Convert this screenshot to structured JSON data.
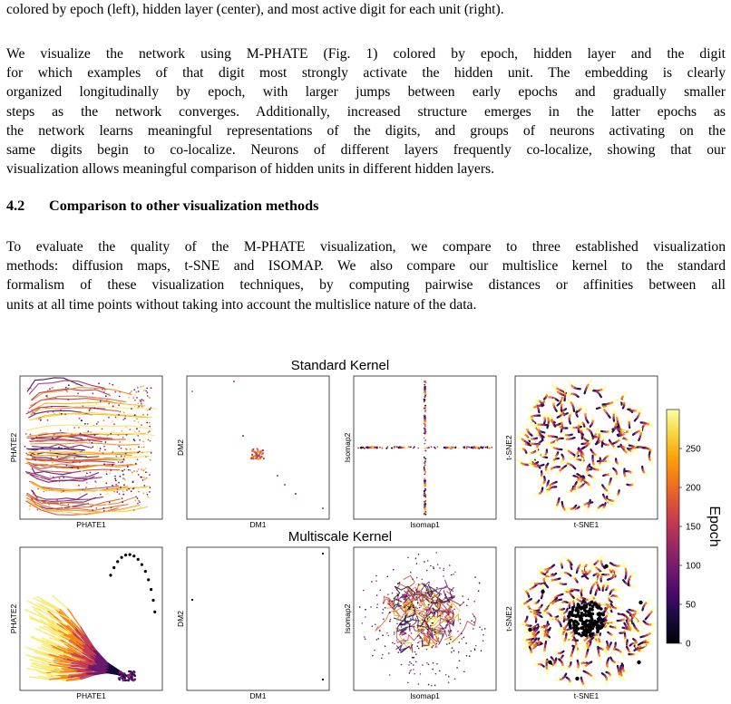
{
  "caption_tail": "colored by epoch (left), hidden layer (center), and most active digit for each unit (right).",
  "paragraph1_lines": [
    "We visualize the network using M-PHATE (Fig. 1) colored by epoch, hidden layer and the digit",
    "for which examples of that digit most strongly activate the hidden unit. The embedding is clearly",
    "organized longitudinally by epoch, with larger jumps between early epochs and gradually smaller",
    "steps as the network converges. Additionally, increased structure emerges in the latter epochs as",
    "the network learns meaningful representations of the digits, and groups of neurons activating on the",
    "same digits begin to co-localize. Neurons of different layers frequently co-localize, showing that our",
    "visualization allows meaningful comparison of hidden units in different hidden layers."
  ],
  "section": {
    "number": "4.2",
    "title": "Comparison to other visualization methods"
  },
  "paragraph2_lines": [
    "To evaluate the quality of the M-PHATE visualization, we compare to three established visualization",
    "methods: diffusion maps, t-SNE and ISOMAP. We also compare our multislice kernel to the standard",
    "formalism of these visualization techniques, by computing pairwise distances or affinities between all",
    "units at all time points without taking into account the multislice nature of the data."
  ],
  "figure": {
    "row_titles": [
      "Standard Kernel",
      "Multiscale Kernel"
    ],
    "panels": [
      {
        "id": "std-phate",
        "xlabel": "PHATE1",
        "ylabel": "PHATE2"
      },
      {
        "id": "std-dm",
        "xlabel": "DM1",
        "ylabel": "DM2"
      },
      {
        "id": "std-isomap",
        "xlabel": "Isomap1",
        "ylabel": "Isomap2"
      },
      {
        "id": "std-tsne",
        "xlabel": "t-SNE1",
        "ylabel": "t-SNE2"
      },
      {
        "id": "ms-phate",
        "xlabel": "PHATE1",
        "ylabel": "PHATE2"
      },
      {
        "id": "ms-dm",
        "xlabel": "DM1",
        "ylabel": "DM2"
      },
      {
        "id": "ms-isomap",
        "xlabel": "Isomap1",
        "ylabel": "Isomap2"
      },
      {
        "id": "ms-tsne",
        "xlabel": "t-SNE1",
        "ylabel": "t-SNE2"
      }
    ],
    "colorbar": {
      "label": "Epoch",
      "ticks": [
        "250",
        "200",
        "150",
        "100",
        "50",
        "0"
      ],
      "tick_values": [
        250,
        200,
        150,
        100,
        50,
        0
      ],
      "range": [
        0,
        300
      ],
      "colormap": "inferno"
    }
  }
}
